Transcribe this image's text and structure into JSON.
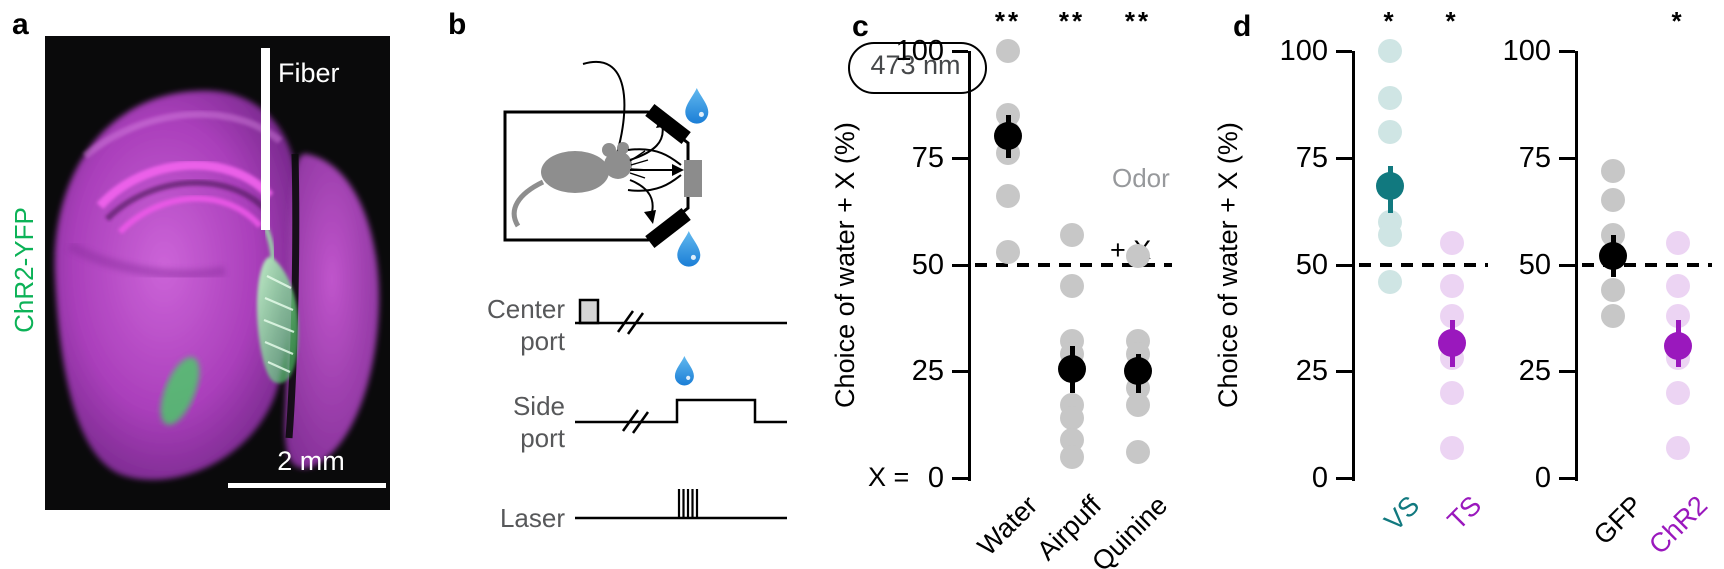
{
  "figure": {
    "panel_letters": {
      "a": "a",
      "b": "b",
      "c": "c",
      "d": "d"
    }
  },
  "panel_a": {
    "fiber_label": "Fiber",
    "fluorophore_label": "ChR2-YFP",
    "fluorophore_color": "#0cb257",
    "scale_bar_label": "2 mm"
  },
  "panel_b": {
    "laser_wavelength_label": "473 nm",
    "odor_label": "Odor",
    "water_plus_x_label": "+ X",
    "center_port_label": "Center\nport",
    "side_port_label": "Side\nport",
    "laser_label": "Laser"
  },
  "colors": {
    "teal": "#11797f",
    "teal_light": "#cfe5e4",
    "purple": "#9a18bd",
    "purple_light": "#ecd4f3",
    "gray_point": "#c7c7c7",
    "black": "#000000",
    "droplet_blue": "#2a8fdd",
    "brain_magenta": "#ab3fbc",
    "yfp_green": "#3fd95f"
  },
  "chart_data": [
    {
      "id": "c",
      "type": "scatter",
      "ylabel": "Choice of water + X (%)",
      "xlabel_prefix": "X =",
      "ylim": [
        0,
        100
      ],
      "yticks": [
        100,
        75,
        50,
        25,
        0
      ],
      "reference_line": 50,
      "grid": false,
      "legend": null,
      "groups": [
        {
          "label": "Water",
          "significance": "**",
          "mean": 80,
          "error_low": 75,
          "error_high": 85,
          "points": [
            100,
            85,
            81,
            76,
            66,
            53
          ],
          "point_color": "#c7c7c7",
          "mean_color": "#000000",
          "label_color": "#000000"
        },
        {
          "label": "Airpuff",
          "significance": "**",
          "mean": 25.5,
          "error_low": 20,
          "error_high": 31,
          "points": [
            57,
            45,
            32,
            29,
            17,
            14,
            9,
            5
          ],
          "point_color": "#c7c7c7",
          "mean_color": "#000000",
          "label_color": "#000000"
        },
        {
          "label": "Quinine",
          "significance": "**",
          "mean": 25,
          "error_low": 20,
          "error_high": 29,
          "points": [
            52,
            32,
            29,
            21,
            17,
            6
          ],
          "point_color": "#c7c7c7",
          "mean_color": "#000000",
          "label_color": "#000000"
        }
      ]
    },
    {
      "id": "d-left",
      "type": "scatter",
      "ylabel": "Choice of water + X (%)",
      "xlabel_prefix": "",
      "ylim": [
        0,
        100
      ],
      "yticks": [
        100,
        75,
        50,
        25,
        0
      ],
      "reference_line": 50,
      "grid": false,
      "legend": null,
      "groups": [
        {
          "label": "VS",
          "significance": "*",
          "mean": 68.5,
          "error_low": 62,
          "error_high": 73,
          "points": [
            100,
            89,
            81,
            60,
            57,
            46
          ],
          "point_color": "#cfe5e4",
          "mean_color": "#11797f",
          "label_color": "#11797f"
        },
        {
          "label": "TS",
          "significance": "*",
          "mean": 31.5,
          "error_low": 26,
          "error_high": 37,
          "points": [
            55,
            45,
            38,
            28,
            20,
            7
          ],
          "point_color": "#ecd4f3",
          "mean_color": "#9a18bd",
          "label_color": "#9a18bd"
        }
      ]
    },
    {
      "id": "d-right",
      "type": "scatter",
      "ylabel": "",
      "xlabel_prefix": "",
      "ylim": [
        0,
        100
      ],
      "yticks": [
        100,
        75,
        50,
        25,
        0
      ],
      "reference_line": 50,
      "grid": false,
      "legend": null,
      "groups": [
        {
          "label": "GFP",
          "significance": "",
          "mean": 52,
          "error_low": 47,
          "error_high": 57,
          "points": [
            72,
            65,
            57,
            44,
            38
          ],
          "point_color": "#c7c7c7",
          "mean_color": "#000000",
          "label_color": "#000000"
        },
        {
          "label": "ChR2",
          "significance": "*",
          "mean": 31,
          "error_low": 26,
          "error_high": 37,
          "points": [
            55,
            45,
            38,
            28,
            20,
            7
          ],
          "point_color": "#ecd4f3",
          "mean_color": "#9a18bd",
          "label_color": "#9a18bd"
        }
      ]
    }
  ]
}
